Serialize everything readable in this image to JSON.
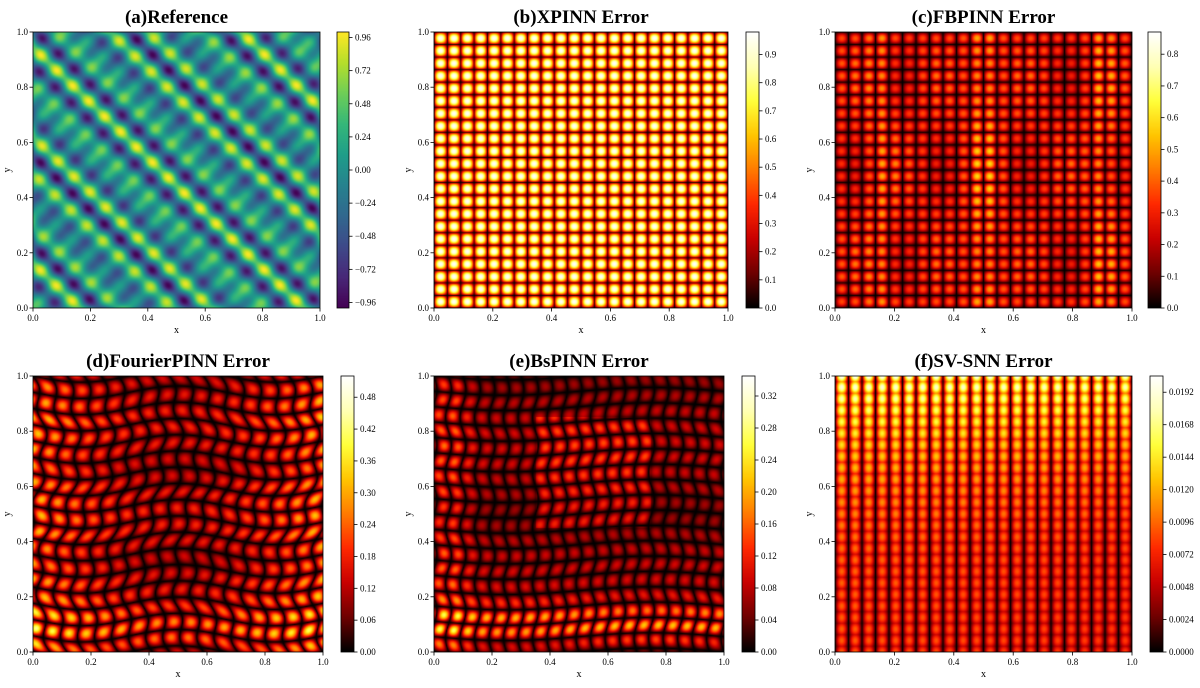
{
  "figure": {
    "type": "heatmap-grid",
    "rows": 2,
    "cols": 3
  },
  "colormaps": {
    "viridis": [
      "#440154",
      "#482878",
      "#3e4a89",
      "#31688e",
      "#26828e",
      "#1f9e89",
      "#35b779",
      "#6ece58",
      "#b5de2b",
      "#fde725"
    ],
    "hot": [
      "#000000",
      "#6e0000",
      "#c80000",
      "#ff2800",
      "#ff7a00",
      "#ffc400",
      "#ffff3a",
      "#ffffb4",
      "#ffffff"
    ]
  },
  "chart_data": [
    {
      "type": "heatmap",
      "title": "(a)Reference",
      "xlabel": "x",
      "ylabel": "y",
      "xlim": [
        0,
        1
      ],
      "ylim": [
        0,
        1
      ],
      "xticks": [
        "0.0",
        "0.2",
        "0.4",
        "0.6",
        "0.8",
        "1.0"
      ],
      "yticks": [
        "0.0",
        "0.2",
        "0.4",
        "0.6",
        "0.8",
        "1.0"
      ],
      "colormap": "viridis",
      "colorbar": {
        "min": -1.0,
        "max": 1.0,
        "ticks": [
          "0.96",
          "0.72",
          "0.48",
          "0.24",
          "0.00",
          "−0.24",
          "−0.48",
          "−0.72",
          "−0.96"
        ],
        "tick_values": [
          0.96,
          0.72,
          0.48,
          0.24,
          0.0,
          -0.24,
          -0.48,
          -0.72,
          -0.96
        ]
      },
      "pattern": "reference",
      "params": {
        "kx": 9,
        "ky": 9
      }
    },
    {
      "type": "heatmap",
      "title": "(b)XPINN Error",
      "xlabel": "x",
      "ylabel": "y",
      "xlim": [
        0,
        1
      ],
      "ylim": [
        0,
        1
      ],
      "xticks": [
        "0.0",
        "0.2",
        "0.4",
        "0.6",
        "0.8",
        "1.0"
      ],
      "yticks": [
        "0.0",
        "0.2",
        "0.4",
        "0.6",
        "0.8",
        "1.0"
      ],
      "colormap": "hot",
      "colorbar": {
        "min": 0.0,
        "max": 0.98,
        "ticks": [
          "0.9",
          "0.8",
          "0.7",
          "0.6",
          "0.5",
          "0.4",
          "0.3",
          "0.2",
          "0.1",
          "0.0"
        ],
        "tick_values": [
          0.9,
          0.8,
          0.7,
          0.6,
          0.5,
          0.4,
          0.3,
          0.2,
          0.1,
          0.0
        ]
      },
      "pattern": "grid",
      "params": {
        "kx": 22,
        "ky": 22,
        "gamma": 0.7
      }
    },
    {
      "type": "heatmap",
      "title": "(c)FBPINN  Error",
      "xlabel": "x",
      "ylabel": "y",
      "xlim": [
        0,
        1
      ],
      "ylim": [
        0,
        1
      ],
      "xticks": [
        "0.0",
        "0.2",
        "0.4",
        "0.6",
        "0.8",
        "1.0"
      ],
      "yticks": [
        "0.0",
        "0.2",
        "0.4",
        "0.6",
        "0.8",
        "1.0"
      ],
      "colormap": "hot",
      "colorbar": {
        "min": 0.0,
        "max": 0.87,
        "ticks": [
          "0.8",
          "0.7",
          "0.6",
          "0.5",
          "0.4",
          "0.3",
          "0.2",
          "0.1",
          "0.0"
        ],
        "tick_values": [
          0.8,
          0.7,
          0.6,
          0.5,
          0.4,
          0.3,
          0.2,
          0.1,
          0.0
        ]
      },
      "pattern": "fbpinn",
      "params": {
        "kx": 22,
        "ky": 22
      }
    },
    {
      "type": "heatmap",
      "title": "(d)FourierPINN Error",
      "xlabel": "x",
      "ylabel": "y",
      "xlim": [
        0,
        1
      ],
      "ylim": [
        0,
        1
      ],
      "xticks": [
        "0.0",
        "0.2",
        "0.4",
        "0.6",
        "0.8",
        "1.0"
      ],
      "yticks": [
        "0.0",
        "0.2",
        "0.4",
        "0.6",
        "0.8",
        "1.0"
      ],
      "colormap": "hot",
      "colorbar": {
        "min": 0.0,
        "max": 0.52,
        "ticks": [
          "0.48",
          "0.42",
          "0.36",
          "0.30",
          "0.24",
          "0.18",
          "0.12",
          "0.06",
          "0.00"
        ],
        "tick_values": [
          0.48,
          0.42,
          0.36,
          0.3,
          0.24,
          0.18,
          0.12,
          0.06,
          0.0
        ]
      },
      "pattern": "fourier",
      "params": {
        "kx": 17,
        "ky": 17
      }
    },
    {
      "type": "heatmap",
      "title": "(e)BsPINN Error",
      "xlabel": "x",
      "ylabel": "y",
      "xlim": [
        0,
        1
      ],
      "ylim": [
        0,
        1
      ],
      "xticks": [
        "0.0",
        "0.2",
        "0.4",
        "0.6",
        "0.8",
        "1.0"
      ],
      "yticks": [
        "0.0",
        "0.2",
        "0.4",
        "0.6",
        "0.8",
        "1.0"
      ],
      "colormap": "hot",
      "colorbar": {
        "min": 0.0,
        "max": 0.345,
        "ticks": [
          "0.32",
          "0.28",
          "0.24",
          "0.20",
          "0.16",
          "0.12",
          "0.08",
          "0.04",
          "0.00"
        ],
        "tick_values": [
          0.32,
          0.28,
          0.24,
          0.2,
          0.16,
          0.12,
          0.08,
          0.04,
          0.0
        ]
      },
      "pattern": "bspinn",
      "params": {
        "kx": 20,
        "ky": 18
      }
    },
    {
      "type": "heatmap",
      "title": "(f)SV-SNN Error",
      "xlabel": "x",
      "ylabel": "y",
      "xlim": [
        0,
        1
      ],
      "ylim": [
        0,
        1
      ],
      "xticks": [
        "0.0",
        "0.2",
        "0.4",
        "0.6",
        "0.8",
        "1.0"
      ],
      "yticks": [
        "0.0",
        "0.2",
        "0.4",
        "0.6",
        "0.8",
        "1.0"
      ],
      "colormap": "hot",
      "colorbar": {
        "min": 0.0,
        "max": 0.0204,
        "ticks": [
          "0.0192",
          "0.0168",
          "0.0144",
          "0.0120",
          "0.0096",
          "0.0072",
          "0.0048",
          "0.0024",
          "0.0000"
        ],
        "tick_values": [
          0.0192,
          0.0168,
          0.0144,
          0.012,
          0.0096,
          0.0072,
          0.0048,
          0.0024,
          0.0
        ]
      },
      "pattern": "svsnn",
      "params": {
        "kx": 22,
        "ky": 24
      }
    }
  ]
}
